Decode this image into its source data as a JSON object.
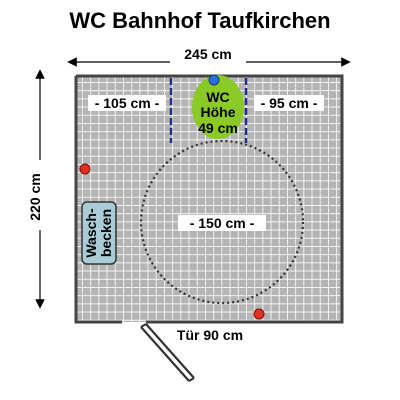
{
  "title": "WC Bahnhof Taufkirchen",
  "dimensions": {
    "width": "245 cm",
    "height": "220 cm",
    "left_of_wc": "- 105 cm -",
    "right_of_wc": "- 95 cm -",
    "turning_circle": "- 150 cm -",
    "door": "Tür 90 cm"
  },
  "wc": {
    "line1": "WC",
    "line2": "Höhe",
    "line3": "49 cm"
  },
  "sink": {
    "line1": "Wasch-",
    "line2": "becken"
  },
  "colors": {
    "floor": "#b4b4b4",
    "grid": "#ffffff",
    "wall": "#444444",
    "wc": "#8ac926",
    "wc_rail": "#1f2d8f",
    "sink": "#a9ccd6",
    "marker_red": "#e03020",
    "marker_blue": "#2a6fdb"
  }
}
